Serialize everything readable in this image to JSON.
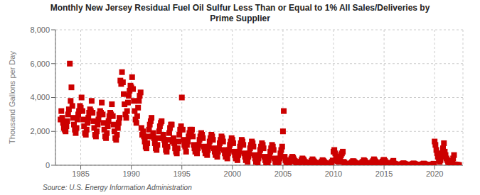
{
  "chart_data": {
    "type": "scatter",
    "title": "Monthly New Jersey Residual Fuel Oil Sulfur Less Than or Equal to 1% All Sales/Deliveries by\nPrime Supplier",
    "ylabel": "Thousand Gallons per Day",
    "annotations": [
      "Source: U.S. Energy Information Administration"
    ],
    "color": "#cc0000",
    "marker": "square",
    "grid": true,
    "xlim": [
      1982.5,
      2022.8
    ],
    "ylim": [
      0,
      8000
    ],
    "xticks": [
      1985,
      1990,
      1995,
      2000,
      2005,
      2010,
      2015,
      2020
    ],
    "yticks": [
      0,
      {
        "value": 2000,
        "label": "2,000"
      },
      {
        "value": 4000,
        "label": "4,000"
      },
      {
        "value": 6000,
        "label": "6,000"
      },
      {
        "value": 8000,
        "label": "8,000"
      }
    ],
    "x": [
      1983.0,
      1983.08,
      1983.17,
      1983.25,
      1983.33,
      1983.42,
      1983.5,
      1983.58,
      1983.67,
      1983.75,
      1983.83,
      1983.92,
      1984.0,
      1984.08,
      1984.17,
      1984.25,
      1984.33,
      1984.42,
      1984.5,
      1984.58,
      1984.67,
      1984.75,
      1984.83,
      1984.92,
      1985.0,
      1985.08,
      1985.17,
      1985.25,
      1985.33,
      1985.42,
      1985.5,
      1985.58,
      1985.67,
      1985.75,
      1985.83,
      1985.92,
      1986.0,
      1986.08,
      1986.17,
      1986.25,
      1986.33,
      1986.42,
      1986.5,
      1986.58,
      1986.67,
      1986.75,
      1986.83,
      1986.92,
      1987.0,
      1987.08,
      1987.17,
      1987.25,
      1987.33,
      1987.42,
      1987.5,
      1987.58,
      1987.67,
      1987.75,
      1987.83,
      1987.92,
      1988.0,
      1988.08,
      1988.17,
      1988.25,
      1988.33,
      1988.42,
      1988.5,
      1988.58,
      1988.67,
      1988.75,
      1988.83,
      1988.92,
      1989.0,
      1989.08,
      1989.17,
      1989.25,
      1989.33,
      1989.42,
      1989.5,
      1989.58,
      1989.67,
      1989.75,
      1989.83,
      1989.92,
      1990.0,
      1990.08,
      1990.17,
      1990.25,
      1990.33,
      1990.42,
      1990.5,
      1990.58,
      1990.67,
      1990.75,
      1990.83,
      1990.92,
      1991.0,
      1991.08,
      1991.17,
      1991.25,
      1991.33,
      1991.42,
      1991.5,
      1991.58,
      1991.67,
      1991.75,
      1991.83,
      1991.92,
      1992.0,
      1992.08,
      1992.17,
      1992.25,
      1992.33,
      1992.42,
      1992.5,
      1992.58,
      1992.67,
      1992.75,
      1992.83,
      1992.92,
      1993.0,
      1993.08,
      1993.17,
      1993.25,
      1993.33,
      1993.42,
      1993.5,
      1993.58,
      1993.67,
      1993.75,
      1993.83,
      1993.92,
      1994.0,
      1994.08,
      1994.17,
      1994.25,
      1994.33,
      1994.42,
      1994.5,
      1994.58,
      1994.67,
      1994.75,
      1994.83,
      1994.92,
      1995.0,
      1995.08,
      1995.17,
      1995.25,
      1995.33,
      1995.42,
      1995.5,
      1995.58,
      1995.67,
      1995.75,
      1995.83,
      1995.92,
      1996.0,
      1996.08,
      1996.17,
      1996.25,
      1996.33,
      1996.42,
      1996.5,
      1996.58,
      1996.67,
      1996.75,
      1996.83,
      1996.92,
      1997.0,
      1997.08,
      1997.17,
      1997.25,
      1997.33,
      1997.42,
      1997.5,
      1997.58,
      1997.67,
      1997.75,
      1997.83,
      1997.92,
      1998.0,
      1998.08,
      1998.17,
      1998.25,
      1998.33,
      1998.42,
      1998.5,
      1998.58,
      1998.67,
      1998.75,
      1998.83,
      1998.92,
      1999.0,
      1999.08,
      1999.17,
      1999.25,
      1999.33,
      1999.42,
      1999.5,
      1999.58,
      1999.67,
      1999.75,
      1999.83,
      1999.92,
      2000.0,
      2000.08,
      2000.17,
      2000.25,
      2000.33,
      2000.42,
      2000.5,
      2000.58,
      2000.67,
      2000.75,
      2000.83,
      2000.92,
      2001.0,
      2001.08,
      2001.17,
      2001.25,
      2001.33,
      2001.42,
      2001.5,
      2001.58,
      2001.67,
      2001.75,
      2001.83,
      2001.92,
      2002.0,
      2002.08,
      2002.17,
      2002.25,
      2002.33,
      2002.42,
      2002.5,
      2002.58,
      2002.67,
      2002.75,
      2002.83,
      2002.92,
      2003.0,
      2003.08,
      2003.17,
      2003.25,
      2003.33,
      2003.42,
      2003.5,
      2003.58,
      2003.67,
      2003.75,
      2003.83,
      2003.92,
      2004.0,
      2004.08,
      2004.17,
      2004.25,
      2004.33,
      2004.42,
      2004.5,
      2004.58,
      2004.67,
      2004.75,
      2004.83,
      2004.92,
      2005.0,
      2005.08,
      2005.17,
      2005.25,
      2005.33,
      2005.42,
      2005.5,
      2005.58,
      2005.67,
      2005.75,
      2005.83,
      2005.92,
      2006.0,
      2006.08,
      2006.17,
      2006.25,
      2006.33,
      2006.42,
      2006.5,
      2006.58,
      2006.67,
      2006.75,
      2006.83,
      2006.92,
      2007.0,
      2007.08,
      2007.17,
      2007.25,
      2007.33,
      2007.42,
      2007.5,
      2007.58,
      2007.67,
      2007.75,
      2007.83,
      2007.92,
      2008.0,
      2008.08,
      2008.17,
      2008.25,
      2008.33,
      2008.42,
      2008.5,
      2008.58,
      2008.67,
      2008.75,
      2008.83,
      2008.92,
      2009.0,
      2009.08,
      2009.17,
      2009.25,
      2009.33,
      2009.42,
      2009.5,
      2009.58,
      2009.67,
      2009.75,
      2009.83,
      2009.92,
      2010.0,
      2010.08,
      2010.17,
      2010.25,
      2010.33,
      2010.42,
      2010.5,
      2010.58,
      2010.67,
      2010.75,
      2010.83,
      2010.92,
      2011.0,
      2011.08,
      2011.17,
      2011.25,
      2011.33,
      2011.42,
      2011.5,
      2011.58,
      2011.67,
      2011.75,
      2011.83,
      2011.92,
      2012.0,
      2012.08,
      2012.17,
      2012.25,
      2012.33,
      2012.42,
      2012.5,
      2012.58,
      2012.67,
      2012.75,
      2012.83,
      2012.92,
      2013.0,
      2013.08,
      2013.17,
      2013.25,
      2013.33,
      2013.42,
      2013.5,
      2013.58,
      2013.67,
      2013.75,
      2013.83,
      2013.92,
      2014.0,
      2014.08,
      2014.17,
      2014.25,
      2014.33,
      2014.42,
      2014.5,
      2014.58,
      2014.67,
      2014.75,
      2014.83,
      2014.92,
      2015.0,
      2015.08,
      2015.17,
      2015.25,
      2015.33,
      2015.42,
      2015.5,
      2015.58,
      2015.67,
      2015.75,
      2015.83,
      2015.92,
      2016.0,
      2016.08,
      2016.17,
      2016.25,
      2016.33,
      2016.42,
      2016.5,
      2016.58,
      2016.67,
      2016.75,
      2016.83,
      2016.92,
      2017.0,
      2017.08,
      2017.17,
      2017.25,
      2017.33,
      2017.42,
      2017.5,
      2017.58,
      2017.67,
      2017.75,
      2017.83,
      2017.92,
      2018.0,
      2018.08,
      2018.17,
      2018.25,
      2018.33,
      2018.42,
      2018.5,
      2018.58,
      2018.67,
      2018.75,
      2018.83,
      2018.92,
      2019.0,
      2019.08,
      2019.17,
      2019.25,
      2019.33,
      2019.42,
      2019.5,
      2019.58,
      2019.67,
      2019.75,
      2019.83,
      2019.92,
      2020.0,
      2020.08,
      2020.17,
      2020.25,
      2020.33,
      2020.42,
      2020.5,
      2020.58,
      2020.67,
      2020.75,
      2020.83,
      2020.92,
      2021.0,
      2021.08,
      2021.17,
      2021.25,
      2021.33,
      2021.42,
      2021.5,
      2021.58,
      2021.67,
      2021.75,
      2021.83,
      2021.92,
      2022.0,
      2022.08,
      2022.17,
      2022.25,
      2022.33,
      2022.42
    ],
    "values": [
      2700,
      3200,
      2800,
      2500,
      2200,
      2100,
      2000,
      2300,
      2600,
      3000,
      3300,
      6000,
      3800,
      4600,
      3500,
      2800,
      2400,
      2100,
      1900,
      2200,
      2700,
      3000,
      3200,
      3500,
      3400,
      4000,
      3200,
      2700,
      2300,
      1900,
      1800,
      2100,
      2500,
      2800,
      3100,
      3300,
      3200,
      3800,
      3100,
      2600,
      2200,
      1800,
      1700,
      2000,
      2400,
      2700,
      3000,
      3200,
      3100,
      3700,
      3000,
      2500,
      2100,
      1700,
      1600,
      1900,
      2300,
      2600,
      2900,
      3100,
      3000,
      3600,
      2900,
      2400,
      2000,
      1600,
      1500,
      1800,
      2200,
      2500,
      2800,
      5000,
      4800,
      5500,
      4900,
      4200,
      3600,
      3000,
      2800,
      3200,
      3700,
      4100,
      4400,
      4700,
      4600,
      5200,
      4500,
      3800,
      3200,
      2700,
      2500,
      2900,
      3400,
      3800,
      4100,
      4300,
      2200,
      1800,
      2000,
      1700,
      1400,
      1100,
      1000,
      1300,
      1700,
      2100,
      2400,
      2600,
      2800,
      1700,
      1900,
      1600,
      1300,
      1000,
      900,
      1200,
      1600,
      2000,
      2300,
      2500,
      2600,
      1600,
      1800,
      1500,
      1200,
      900,
      800,
      1100,
      1500,
      1900,
      2200,
      2400,
      2400,
      1400,
      1600,
      1300,
      1000,
      800,
      700,
      1000,
      1400,
      1800,
      2100,
      2300,
      4000,
      2100,
      1500,
      1200,
      1100,
      800,
      1200,
      1400,
      1700,
      1900,
      2100,
      1900,
      2100,
      1700,
      1200,
      1000,
      800,
      1100,
      700,
      1000,
      1200,
      1500,
      1700,
      1900,
      1800,
      1600,
      1100,
      900,
      700,
      1000,
      600,
      900,
      1100,
      1400,
      1600,
      1800,
      1700,
      1500,
      1000,
      800,
      600,
      900,
      500,
      800,
      1000,
      1300,
      1500,
      1700,
      1600,
      1400,
      900,
      700,
      500,
      800,
      400,
      700,
      900,
      1200,
      1400,
      1600,
      1500,
      1300,
      800,
      600,
      400,
      700,
      300,
      600,
      800,
      1100,
      1300,
      1500,
      1400,
      1200,
      700,
      500,
      300,
      600,
      200,
      500,
      700,
      1000,
      1200,
      1400,
      1300,
      1100,
      600,
      400,
      200,
      500,
      100,
      400,
      600,
      900,
      1100,
      1300,
      1200,
      1000,
      500,
      300,
      100,
      400,
      50,
      300,
      500,
      800,
      1000,
      1200,
      1100,
      900,
      400,
      200,
      50,
      300,
      30,
      200,
      400,
      700,
      900,
      1100,
      2000,
      3200,
      500,
      300,
      200,
      100,
      50,
      100,
      200,
      300,
      400,
      500,
      450,
      350,
      250,
      200,
      150,
      100,
      50,
      80,
      120,
      200,
      300,
      400,
      350,
      280,
      200,
      150,
      100,
      80,
      50,
      70,
      100,
      170,
      260,
      350,
      280,
      220,
      160,
      120,
      90,
      70,
      50,
      60,
      90,
      150,
      220,
      300,
      250,
      190,
      140,
      100,
      80,
      60,
      40,
      55,
      80,
      130,
      200,
      280,
      800,
      900,
      700,
      500,
      350,
      250,
      200,
      300,
      450,
      600,
      700,
      800,
      200,
      150,
      100,
      80,
      60,
      50,
      30,
      50,
      80,
      130,
      180,
      240,
      230,
      180,
      130,
      100,
      70,
      50,
      30,
      45,
      70,
      110,
      160,
      210,
      300,
      250,
      180,
      130,
      90,
      60,
      40,
      50,
      80,
      130,
      190,
      260,
      350,
      280,
      200,
      150,
      100,
      70,
      40,
      55,
      90,
      140,
      210,
      290,
      320,
      250,
      180,
      130,
      90,
      60,
      35,
      50,
      80,
      130,
      190,
      260,
      100,
      80,
      60,
      40,
      30,
      20,
      15,
      20,
      35,
      60,
      90,
      120,
      90,
      70,
      50,
      35,
      25,
      15,
      10,
      15,
      30,
      50,
      80,
      110,
      80,
      60,
      45,
      30,
      20,
      12,
      8,
      12,
      25,
      45,
      70,
      100,
      70,
      55,
      40,
      28,
      18,
      10,
      7,
      10,
      22,
      40,
      65,
      90,
      1400,
      1200,
      900,
      700,
      500,
      300,
      200,
      300,
      500,
      700,
      1000,
      1300,
      800,
      600,
      400,
      300,
      200,
      100,
      60,
      90,
      150,
      250,
      400,
      600,
      50,
      40,
      30,
      20,
      15,
      10
    ]
  }
}
